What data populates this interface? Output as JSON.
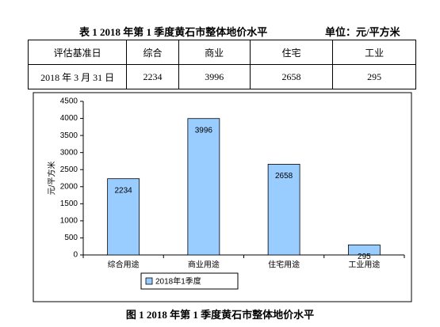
{
  "header": {
    "title": "表 1   2018 年第 1 季度黄石市整体地价水平",
    "unit": "单位：元/平方米"
  },
  "table": {
    "rows": [
      [
        "评估基准日",
        "综合",
        "商业",
        "住宅",
        "工业"
      ],
      [
        "2018 年 3 月 31 日",
        "2234",
        "3996",
        "2658",
        "295"
      ]
    ]
  },
  "chart_data": {
    "type": "bar",
    "y_label": "元/平方米",
    "categories": [
      "综合用途",
      "商业用途",
      "住宅用途",
      "工业用途"
    ],
    "series": [
      {
        "name": "2018年1季度",
        "color": "#99ccff",
        "values": [
          2234,
          3996,
          2658,
          295
        ]
      }
    ],
    "ylim": [
      0,
      4500
    ],
    "yticks": [
      0,
      500,
      1000,
      1500,
      2000,
      2500,
      3000,
      3500,
      4000,
      4500
    ],
    "grid": false,
    "legend": "bottom"
  },
  "caption": "图 1   2018 年第 1 季度黄石市整体地价水平"
}
